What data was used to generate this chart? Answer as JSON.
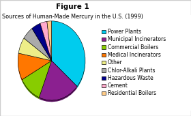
{
  "title": "Figure 1",
  "subtitle": "Sources of Human-Made Mercury in the U.S. (1999)",
  "labels": [
    "Power Plants",
    "Municipal Incinerators",
    "Commercial Boilers",
    "Medical Incinerators",
    "Other",
    "Chlor-Alkali Plants",
    "Hazardous Waste",
    "Cement",
    "Residential Boilers"
  ],
  "sizes": [
    33,
    18,
    10,
    10,
    6,
    5,
    4,
    3,
    2
  ],
  "colors": [
    "#00ccee",
    "#8b2090",
    "#88cc00",
    "#ff7700",
    "#eeee88",
    "#aaaaaa",
    "#000088",
    "#ffaacc",
    "#ffcc88"
  ],
  "shadow_colors": [
    "#009aaa",
    "#5a1060",
    "#558800",
    "#cc5500",
    "#aaaaaa",
    "#777777",
    "#000055",
    "#cc88aa",
    "#cc9955"
  ],
  "background_color": "#ffffff",
  "border_color": "#cccccc",
  "title_fontsize": 7.5,
  "subtitle_fontsize": 5.8,
  "legend_fontsize": 5.5,
  "startangle": 90
}
